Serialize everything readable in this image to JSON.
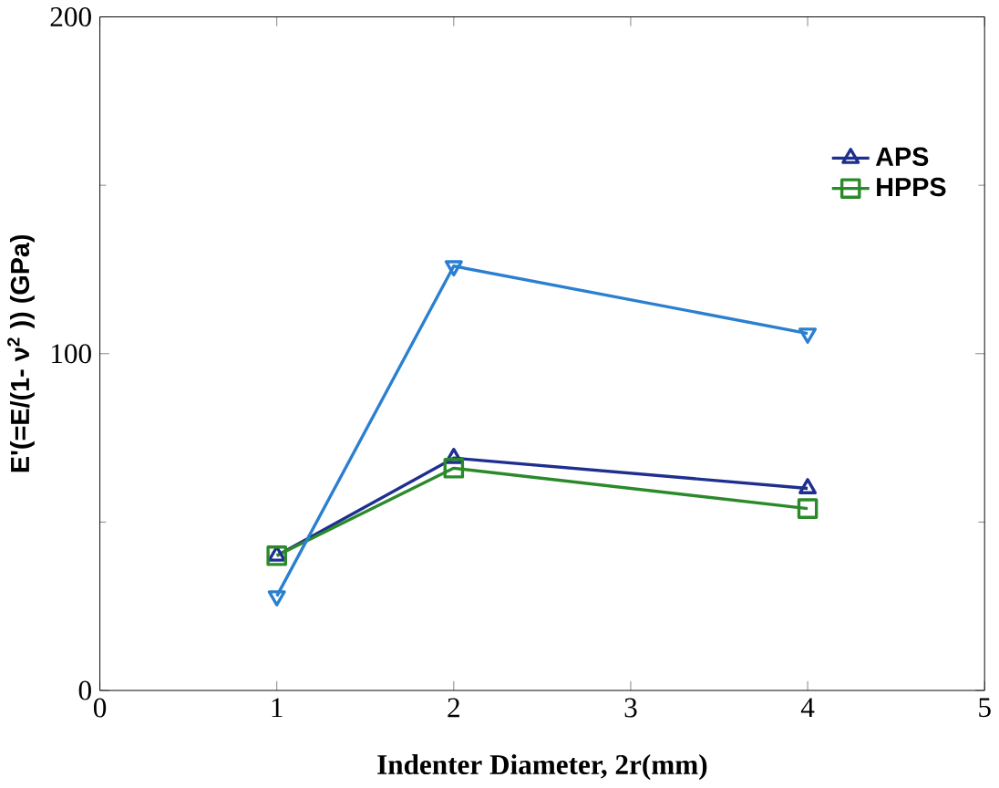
{
  "chart_data": {
    "type": "line",
    "xlabel": "Indenter Diameter, 2r(mm)",
    "ylabel": "E'(=E/(1- ν$^{2}$ ))  (GPa)",
    "x": [
      1,
      2,
      4
    ],
    "xlim": [
      0,
      5
    ],
    "xticks": [
      0,
      1,
      2,
      3,
      4,
      5
    ],
    "ylim": [
      0,
      200
    ],
    "yticks": [
      0,
      100,
      200
    ],
    "legend": "top right",
    "grid": false,
    "series": [
      {
        "name": "APS",
        "color": "#1f2f8f",
        "marker": "triangle",
        "values": [
          40,
          69,
          60
        ]
      },
      {
        "name": "HPPS",
        "color": "#2a8a2a",
        "marker": "square",
        "values": [
          40,
          66,
          54
        ]
      },
      {
        "color": "#2a7fd0",
        "marker": "triangle down",
        "values": [
          28,
          126,
          106
        ]
      }
    ]
  }
}
